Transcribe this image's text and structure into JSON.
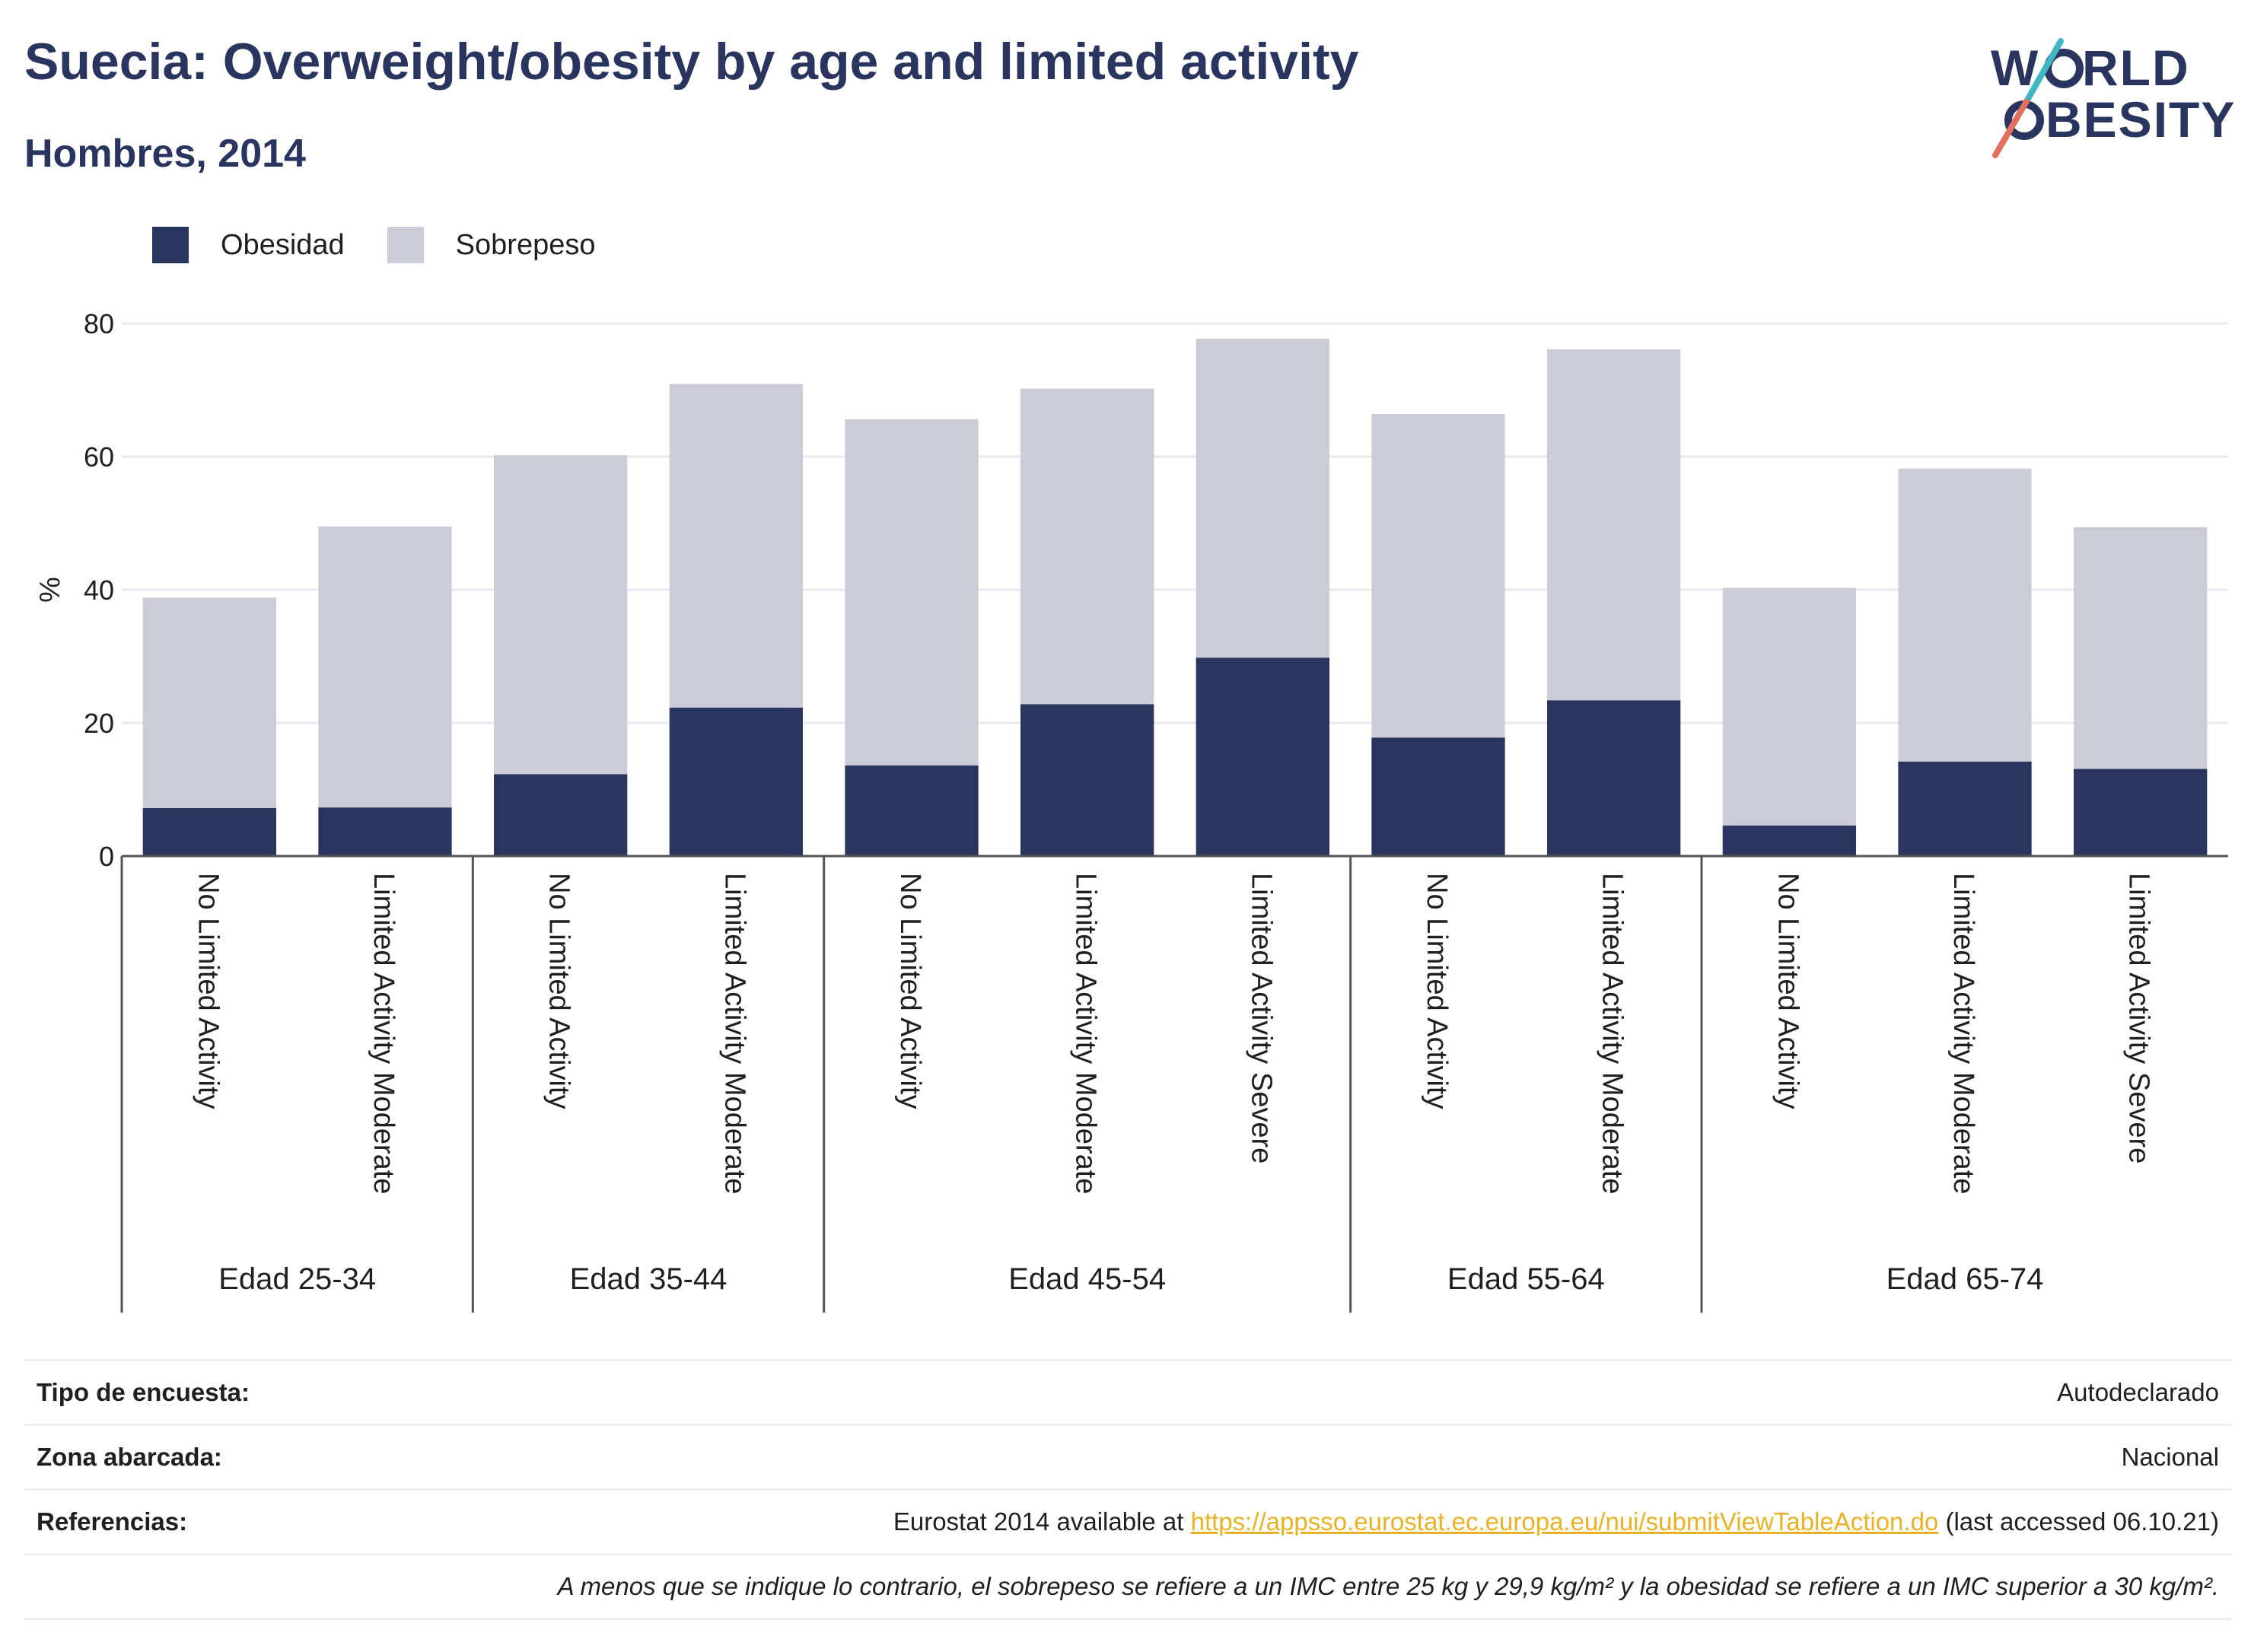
{
  "title": "Suecia: Overweight/obesity by age and limited activity",
  "subtitle": "Hombres, 2014",
  "logo": {
    "line1": "W RLD",
    "line2": "BESITY",
    "text": "WORLD OBESITY"
  },
  "legend": [
    {
      "label": "Obesidad",
      "color": "#2a355f"
    },
    {
      "label": "Sobrepeso",
      "color": "#cbccd8"
    }
  ],
  "chart_data": {
    "type": "bar",
    "stacked": true,
    "ylabel": "%",
    "ylim": [
      0,
      80
    ],
    "yticks": [
      0,
      20,
      40,
      60,
      80
    ],
    "grid": true,
    "legend_position": "top-left",
    "groups": [
      {
        "label": "Edad 25-34",
        "categories": [
          "No Limited Activity",
          "Limited Activity Moderate"
        ]
      },
      {
        "label": "Edad 35-44",
        "categories": [
          "No Limited Activity",
          "Limited Activity Moderate"
        ]
      },
      {
        "label": "Edad 45-54",
        "categories": [
          "No Limited Activity",
          "Limited Activity Moderate",
          "Limited Activity Severe"
        ]
      },
      {
        "label": "Edad 55-64",
        "categories": [
          "No Limited Activity",
          "Limited Activity Moderate"
        ]
      },
      {
        "label": "Edad 65-74",
        "categories": [
          "No Limited Activity",
          "Limited Activity Moderate",
          "Limited Activity Severe"
        ]
      }
    ],
    "series": [
      {
        "name": "Obesidad",
        "color": "#2a355f",
        "values": [
          7.2,
          7.3,
          12.3,
          22.3,
          13.6,
          22.8,
          29.8,
          17.8,
          23.4,
          4.6,
          14.2,
          13.1
        ]
      },
      {
        "name": "Sobrepeso",
        "color": "#cbccd8",
        "values": [
          31.6,
          42.2,
          47.9,
          48.6,
          52.0,
          47.4,
          47.9,
          48.6,
          52.7,
          35.7,
          44.0,
          36.3
        ]
      }
    ]
  },
  "meta": {
    "rows": [
      {
        "label": "Tipo de encuesta:",
        "value": "Autodeclarado"
      },
      {
        "label": "Zona abarcada:",
        "value": "Nacional"
      }
    ],
    "references": {
      "label": "Referencias:",
      "prefix": "Eurostat 2014 available at ",
      "link": "https://appsso.eurostat.ec.europa.eu/nui/submitViewTableAction.do",
      "suffix": " (last accessed 06.10.21)"
    },
    "note": "A menos que se indique lo contrario, el sobrepeso se refiere a un IMC entre 25 kg y 29,9 kg/m² y la obesidad se refiere a un IMC superior a 30 kg/m²."
  }
}
